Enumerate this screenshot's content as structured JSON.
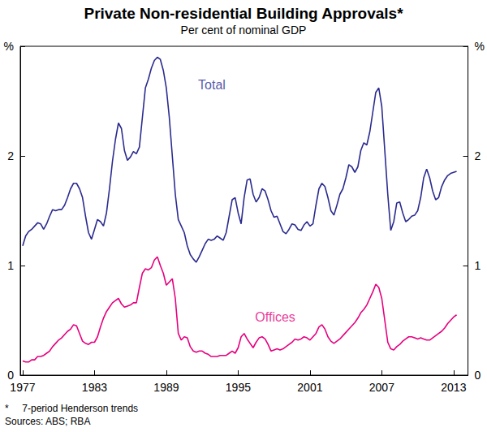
{
  "chart_data": {
    "type": "line",
    "title": "Private Non-residential Building Approvals*",
    "subtitle": "Per cent of nominal GDP",
    "notes": [
      "*     7-period Henderson trends",
      "Sources: ABS; RBA"
    ],
    "xlim": [
      1976.8,
      2014.2
    ],
    "xticks": [
      1977,
      1983,
      1989,
      1995,
      2001,
      2007,
      2013
    ],
    "ylim": [
      0,
      3
    ],
    "yticks": [
      0,
      1,
      2,
      {
        "value": 3,
        "label": "%"
      }
    ],
    "grid": false,
    "x": [
      1977,
      1977.25,
      1977.5,
      1977.75,
      1978,
      1978.25,
      1978.5,
      1978.75,
      1979,
      1979.25,
      1979.5,
      1979.75,
      1980,
      1980.25,
      1980.5,
      1980.75,
      1981,
      1981.25,
      1981.5,
      1981.75,
      1982,
      1982.25,
      1982.5,
      1982.75,
      1983,
      1983.25,
      1983.5,
      1983.75,
      1984,
      1984.25,
      1984.5,
      1984.75,
      1985,
      1985.25,
      1985.5,
      1985.75,
      1986,
      1986.25,
      1986.5,
      1986.75,
      1987,
      1987.25,
      1987.5,
      1987.75,
      1988,
      1988.25,
      1988.5,
      1988.75,
      1989,
      1989.25,
      1989.5,
      1989.75,
      1990,
      1990.25,
      1990.5,
      1990.75,
      1991,
      1991.25,
      1991.5,
      1991.75,
      1992,
      1992.25,
      1992.5,
      1992.75,
      1993,
      1993.25,
      1993.5,
      1993.75,
      1994,
      1994.25,
      1994.5,
      1994.75,
      1995,
      1995.25,
      1995.5,
      1995.75,
      1996,
      1996.25,
      1996.5,
      1996.75,
      1997,
      1997.25,
      1997.5,
      1997.75,
      1998,
      1998.25,
      1998.5,
      1998.75,
      1999,
      1999.25,
      1999.5,
      1999.75,
      2000,
      2000.25,
      2000.5,
      2000.75,
      2001,
      2001.25,
      2001.5,
      2001.75,
      2002,
      2002.25,
      2002.5,
      2002.75,
      2003,
      2003.25,
      2003.5,
      2003.75,
      2004,
      2004.25,
      2004.5,
      2004.75,
      2005,
      2005.25,
      2005.5,
      2005.75,
      2006,
      2006.25,
      2006.5,
      2006.75,
      2007,
      2007.25,
      2007.5,
      2007.75,
      2008,
      2008.25,
      2008.5,
      2008.75,
      2009,
      2009.25,
      2009.5,
      2009.75,
      2010,
      2010.25,
      2010.5,
      2010.75,
      2011,
      2011.25,
      2011.5,
      2011.75,
      2012,
      2012.25,
      2012.5,
      2012.75,
      2013,
      2013.25
    ],
    "series": [
      {
        "name": "Total",
        "color": "#2b2b8f",
        "values": [
          1.18,
          1.27,
          1.31,
          1.33,
          1.36,
          1.39,
          1.38,
          1.33,
          1.38,
          1.45,
          1.51,
          1.5,
          1.51,
          1.51,
          1.55,
          1.62,
          1.7,
          1.75,
          1.75,
          1.7,
          1.62,
          1.45,
          1.3,
          1.24,
          1.33,
          1.42,
          1.4,
          1.36,
          1.48,
          1.7,
          1.95,
          2.15,
          2.3,
          2.25,
          2.05,
          1.96,
          1.99,
          2.04,
          2.02,
          2.08,
          2.35,
          2.62,
          2.7,
          2.8,
          2.87,
          2.9,
          2.88,
          2.78,
          2.62,
          2.35,
          2.0,
          1.65,
          1.42,
          1.36,
          1.3,
          1.18,
          1.1,
          1.06,
          1.03,
          1.08,
          1.14,
          1.2,
          1.24,
          1.23,
          1.24,
          1.27,
          1.25,
          1.23,
          1.3,
          1.45,
          1.6,
          1.62,
          1.48,
          1.38,
          1.62,
          1.78,
          1.79,
          1.65,
          1.58,
          1.62,
          1.7,
          1.68,
          1.6,
          1.5,
          1.44,
          1.45,
          1.38,
          1.31,
          1.29,
          1.33,
          1.38,
          1.37,
          1.33,
          1.32,
          1.37,
          1.4,
          1.36,
          1.38,
          1.55,
          1.7,
          1.75,
          1.72,
          1.62,
          1.5,
          1.46,
          1.55,
          1.65,
          1.7,
          1.8,
          1.92,
          1.9,
          1.85,
          1.9,
          2.05,
          2.12,
          2.1,
          2.22,
          2.4,
          2.58,
          2.62,
          2.45,
          2.05,
          1.65,
          1.32,
          1.4,
          1.57,
          1.58,
          1.48,
          1.4,
          1.42,
          1.45,
          1.46,
          1.5,
          1.62,
          1.8,
          1.88,
          1.8,
          1.68,
          1.6,
          1.62,
          1.72,
          1.78,
          1.82,
          1.84,
          1.85,
          1.86
        ]
      },
      {
        "name": "Offices",
        "color": "#e6007e",
        "values": [
          0.13,
          0.12,
          0.12,
          0.14,
          0.14,
          0.17,
          0.17,
          0.18,
          0.2,
          0.22,
          0.26,
          0.29,
          0.32,
          0.34,
          0.37,
          0.4,
          0.42,
          0.46,
          0.45,
          0.38,
          0.31,
          0.29,
          0.28,
          0.3,
          0.3,
          0.35,
          0.44,
          0.52,
          0.58,
          0.62,
          0.66,
          0.68,
          0.7,
          0.65,
          0.62,
          0.63,
          0.64,
          0.66,
          0.66,
          0.8,
          0.93,
          0.97,
          0.96,
          0.98,
          1.05,
          1.08,
          1.0,
          0.93,
          0.82,
          0.85,
          0.88,
          0.7,
          0.38,
          0.32,
          0.35,
          0.34,
          0.26,
          0.22,
          0.21,
          0.22,
          0.22,
          0.2,
          0.19,
          0.17,
          0.17,
          0.17,
          0.18,
          0.18,
          0.18,
          0.2,
          0.22,
          0.2,
          0.25,
          0.35,
          0.38,
          0.33,
          0.29,
          0.25,
          0.3,
          0.34,
          0.35,
          0.33,
          0.28,
          0.22,
          0.23,
          0.24,
          0.23,
          0.24,
          0.26,
          0.28,
          0.3,
          0.33,
          0.32,
          0.33,
          0.35,
          0.34,
          0.32,
          0.35,
          0.38,
          0.44,
          0.46,
          0.42,
          0.35,
          0.31,
          0.29,
          0.31,
          0.33,
          0.36,
          0.39,
          0.42,
          0.45,
          0.48,
          0.52,
          0.57,
          0.6,
          0.64,
          0.7,
          0.76,
          0.83,
          0.8,
          0.7,
          0.5,
          0.3,
          0.24,
          0.23,
          0.26,
          0.28,
          0.31,
          0.33,
          0.35,
          0.35,
          0.34,
          0.33,
          0.34,
          0.33,
          0.32,
          0.32,
          0.34,
          0.36,
          0.38,
          0.4,
          0.43,
          0.47,
          0.5,
          0.53,
          0.55
        ]
      }
    ],
    "annotations": [
      {
        "text": "Total",
        "x": 1992.8,
        "y": 2.65,
        "color": "#2b2b8f"
      },
      {
        "text": "Offices",
        "x": 1998.1,
        "y": 0.53,
        "color": "#e6007e"
      }
    ]
  }
}
